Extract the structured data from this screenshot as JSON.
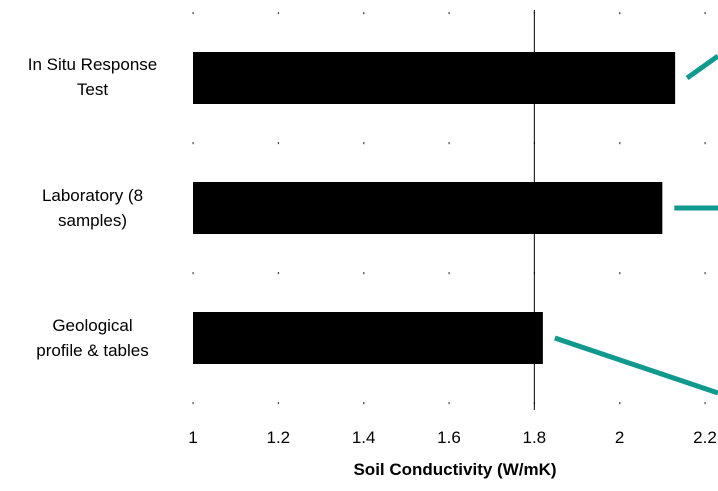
{
  "chart_data": {
    "type": "bar",
    "orientation": "horizontal",
    "categories": [
      "In Situ Response Test",
      "Laboratory (8 samples)",
      "Geological profile & tables"
    ],
    "category_lines": [
      [
        "In Situ Response",
        "Test"
      ],
      [
        "Laboratory (8",
        "samples)"
      ],
      [
        "Geological",
        "profile & tables"
      ]
    ],
    "values": [
      2.13,
      2.1,
      1.82
    ],
    "xlabel": "Soil Conductivity (W/mK)",
    "ylabel": "",
    "title": "",
    "xlim": [
      1,
      2.2
    ],
    "xticks": [
      "1",
      "1.2",
      "1.4",
      "1.6",
      "1.8",
      "2",
      "2.2"
    ],
    "reference_lines": [
      1.8
    ],
    "bar_color": "#000000",
    "callout_color": "#10998e",
    "grid": false,
    "legend": "none"
  }
}
